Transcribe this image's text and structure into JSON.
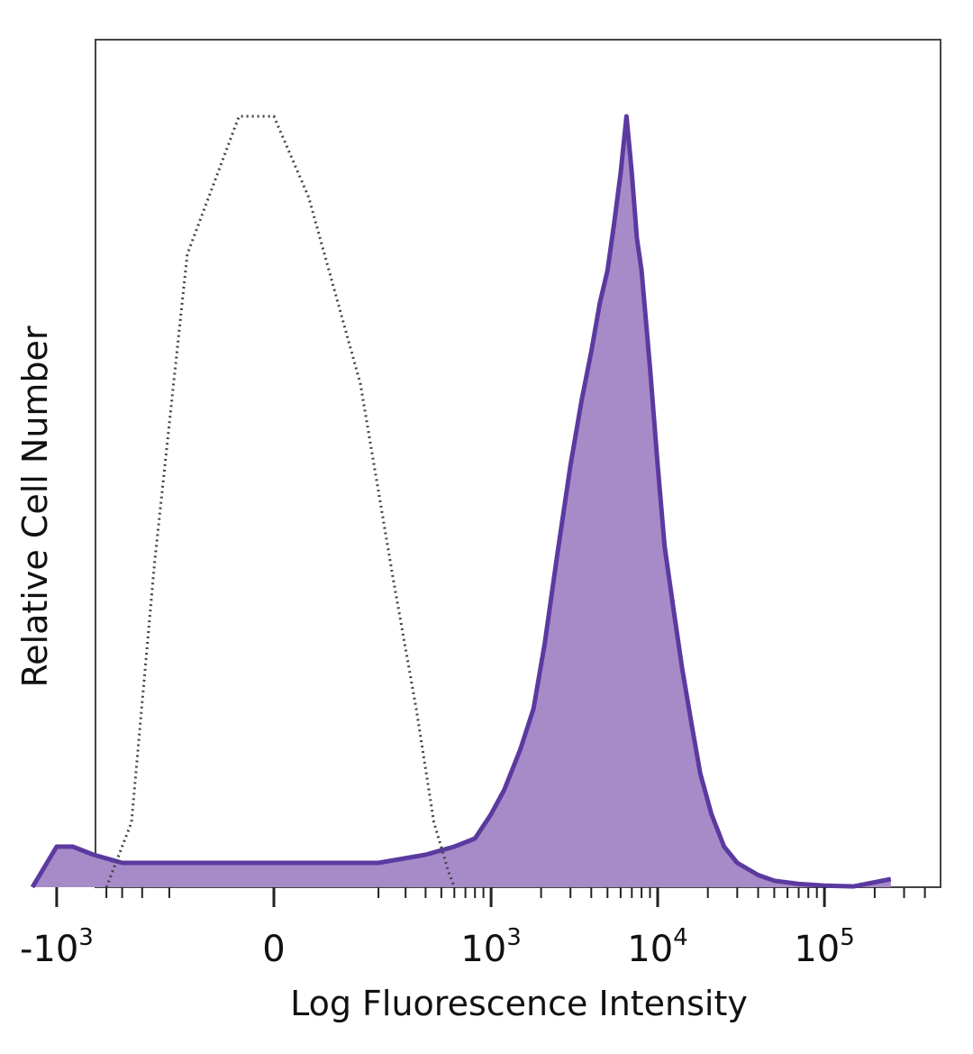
{
  "chart_data": {
    "type": "area",
    "title": "",
    "xlabel": "Log Fluorescence Intensity",
    "ylabel": "Relative Cell Number",
    "x_scale": "biexponential",
    "xlim": [
      -1500,
      250000
    ],
    "ylim": [
      0,
      100
    ],
    "grid": false,
    "legend": "none",
    "x_ticks": [
      {
        "value": -1000,
        "base": "-10",
        "exp": "3"
      },
      {
        "value": 0,
        "base": "0",
        "exp": ""
      },
      {
        "value": 1000,
        "base": "10",
        "exp": "3"
      },
      {
        "value": 10000,
        "base": "10",
        "exp": "4"
      },
      {
        "value": 100000,
        "base": "10",
        "exp": "5"
      }
    ],
    "series": [
      {
        "style": "filled",
        "color": "#5b3aa0",
        "fill": "#a78bc8",
        "x": [
          -1400,
          -1000,
          -800,
          -600,
          -400,
          -200,
          0,
          200,
          400,
          600,
          800,
          1000,
          1200,
          1500,
          1800,
          2100,
          2500,
          3000,
          3500,
          4000,
          4500,
          5000,
          5500,
          6000,
          6500,
          7000,
          7500,
          8000,
          9000,
          10000,
          11000,
          12500,
          14000,
          16000,
          18000,
          21000,
          25000,
          30000,
          40000,
          50000,
          70000,
          100000,
          150000,
          250000
        ],
        "y": [
          0,
          5,
          5,
          4,
          3,
          3,
          3,
          3,
          4,
          5,
          6,
          9,
          12,
          17,
          22,
          30,
          41,
          52,
          60,
          66,
          72,
          76,
          82,
          88,
          95,
          88,
          80,
          76,
          64,
          52,
          42,
          34,
          27,
          20,
          14,
          9,
          5,
          3,
          1.5,
          0.8,
          0.4,
          0.2,
          0.1,
          1
        ]
      },
      {
        "style": "dotted",
        "color": "#444444",
        "x": [
          -500,
          -350,
          -250,
          -150,
          -50,
          0,
          50,
          150,
          250,
          350,
          450,
          550,
          600
        ],
        "y": [
          0,
          8,
          40,
          78,
          95,
          95,
          85,
          62,
          38,
          22,
          8,
          2,
          0
        ]
      }
    ]
  }
}
